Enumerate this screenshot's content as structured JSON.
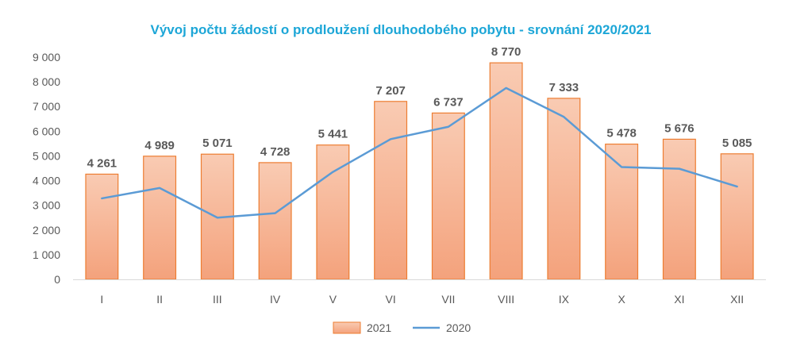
{
  "chart_data": {
    "type": "bar",
    "title": "Vývoj počtu žádostí o prodloužení dlouhodobého pobytu - srovnání 2020/2021",
    "xlabel": "",
    "ylabel": "",
    "categories": [
      "I",
      "II",
      "III",
      "IV",
      "V",
      "VI",
      "VII",
      "VIII",
      "IX",
      "X",
      "XI",
      "XII"
    ],
    "ylim": [
      0,
      9000
    ],
    "yticks": [
      0,
      1000,
      2000,
      3000,
      4000,
      5000,
      6000,
      7000,
      8000,
      9000
    ],
    "ytick_labels": [
      "0",
      "1 000",
      "2 000",
      "3 000",
      "4 000",
      "5 000",
      "6 000",
      "7 000",
      "8 000",
      "9 000"
    ],
    "grid": false,
    "legend_position": "bottom",
    "series": [
      {
        "name": "2021",
        "type": "bar",
        "values": [
          4261,
          4989,
          5071,
          4728,
          5441,
          7207,
          6737,
          8770,
          7333,
          5478,
          5676,
          5085
        ],
        "labels": [
          "4 261",
          "4 989",
          "5 071",
          "4 728",
          "5 441",
          "7 207",
          "6 737",
          "8 770",
          "7 333",
          "5 478",
          "5 676",
          "5 085"
        ],
        "color": "#f4a582",
        "border_color": "#ed7d31"
      },
      {
        "name": "2020",
        "type": "line",
        "values": [
          3280,
          3700,
          2500,
          2680,
          4350,
          5680,
          6180,
          7750,
          6580,
          4550,
          4480,
          3760
        ],
        "color": "#5b9bd5"
      }
    ]
  }
}
